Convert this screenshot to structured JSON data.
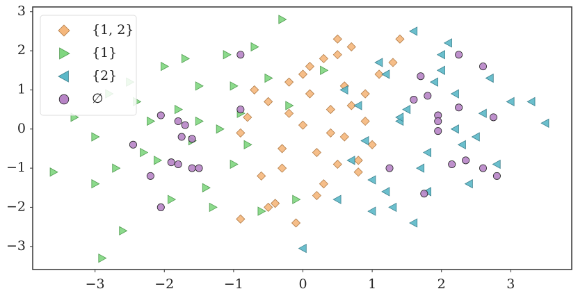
{
  "chart_data": {
    "type": "scatter",
    "xlim": [
      -3.9,
      3.88
    ],
    "ylim": [
      -3.59,
      3.12
    ],
    "xticks": [
      {
        "value": -3,
        "label": "−3"
      },
      {
        "value": -2,
        "label": "−2"
      },
      {
        "value": -1,
        "label": "−1"
      },
      0,
      1,
      2,
      3
    ],
    "yticks": [
      {
        "value": -3,
        "label": "−3"
      },
      {
        "value": -2,
        "label": "−2"
      },
      {
        "value": -1,
        "label": "−1"
      },
      0,
      1,
      2,
      3
    ],
    "grid": false,
    "legend": "upper left",
    "series": [
      {
        "name": "{1, 2}",
        "color": "#f5b77c",
        "edge": "#b07a45",
        "marker": "diamond",
        "x": [
          0.5,
          0.7,
          0.3,
          -0.2,
          0.1,
          0.9,
          1.1,
          -0.5,
          -0.8,
          0.4,
          0.6,
          0.0,
          -0.3,
          0.8,
          1.3,
          -0.6,
          0.2,
          -0.1,
          0.5,
          0.9,
          -0.9,
          -0.4,
          0.3,
          0.7,
          1.0,
          -0.7,
          0.1,
          0.4,
          -0.2,
          0.6,
          -0.9,
          -0.3,
          0.2,
          1.4,
          0.8,
          -0.5,
          0.0,
          0.5
        ],
        "values": [
          2.3,
          2.1,
          1.8,
          1.2,
          1.6,
          0.9,
          1.4,
          0.7,
          0.3,
          0.5,
          -0.2,
          0.1,
          -0.5,
          -0.8,
          1.7,
          -1.2,
          -1.7,
          -2.4,
          -0.9,
          0.2,
          -2.3,
          -1.9,
          -1.4,
          0.6,
          -0.4,
          1.0,
          0.9,
          -0.1,
          0.4,
          1.1,
          -0.1,
          -1.0,
          -0.6,
          2.3,
          -1.1,
          -2.0,
          1.4,
          1.9
        ]
      },
      {
        "name": "{1}",
        "color": "#7fd67f",
        "edge": "#4e9a4e",
        "marker": "triangle-right",
        "x": [
          -3.6,
          -3.3,
          -3.0,
          -2.8,
          -2.6,
          -2.5,
          -2.3,
          -2.2,
          -2.0,
          -1.9,
          -1.8,
          -1.6,
          -1.5,
          -1.4,
          -1.2,
          -1.1,
          -1.0,
          -0.9,
          -0.8,
          -0.7,
          -0.5,
          -0.3,
          -0.1,
          0.3,
          -2.9,
          -2.1,
          -1.7,
          -1.3,
          -0.6,
          -2.4,
          -1.0,
          -0.2,
          -3.0,
          -1.5,
          -2.7
        ],
        "values": [
          -1.1,
          0.3,
          -1.4,
          0.9,
          -2.6,
          1.2,
          -0.6,
          0.2,
          1.6,
          -1.8,
          0.5,
          -0.3,
          1.1,
          -1.5,
          0.0,
          1.9,
          -0.9,
          0.4,
          -0.4,
          2.1,
          1.3,
          2.8,
          -1.8,
          1.5,
          -3.3,
          -0.8,
          1.8,
          -2.0,
          -2.1,
          0.7,
          1.1,
          0.6,
          -0.2,
          0.2,
          -1.0
        ]
      },
      {
        "name": "{2}",
        "color": "#5bb8c8",
        "edge": "#3a7f8c",
        "marker": "triangle-left",
        "x": [
          0.5,
          0.8,
          1.0,
          1.2,
          1.4,
          1.6,
          1.8,
          2.0,
          2.2,
          2.4,
          2.6,
          2.8,
          3.0,
          3.3,
          3.5,
          0.9,
          1.1,
          1.3,
          1.5,
          1.7,
          1.9,
          2.1,
          2.3,
          2.7,
          0.6,
          1.0,
          1.4,
          1.8,
          2.5,
          0.0,
          1.6,
          2.2,
          0.7,
          2.0,
          1.2
        ],
        "values": [
          -1.8,
          0.6,
          -1.3,
          1.4,
          0.2,
          2.5,
          -0.6,
          1.9,
          0.9,
          -1.4,
          0.4,
          -0.9,
          0.7,
          0.7,
          0.15,
          -0.3,
          1.7,
          -2.0,
          0.5,
          -1.0,
          1.2,
          2.2,
          -0.4,
          1.3,
          1.0,
          -2.1,
          0.3,
          -1.6,
          -0.2,
          -3.05,
          -2.4,
          0.0,
          -0.8,
          1.5,
          -1.6
        ]
      },
      {
        "name": "∅",
        "color": "#b784c6",
        "edge": "#222222",
        "marker": "circle",
        "x": [
          -0.9,
          -2.05,
          -1.8,
          -1.7,
          -2.45,
          -1.9,
          -1.8,
          -1.6,
          -1.5,
          -2.2,
          -2.05,
          -1.6,
          -1.75,
          -0.9,
          1.25,
          1.7,
          1.8,
          1.6,
          1.95,
          1.95,
          1.95,
          2.25,
          2.25,
          2.15,
          2.35,
          2.6,
          2.6,
          2.75,
          2.8,
          1.75
        ],
        "values": [
          1.9,
          0.35,
          0.2,
          0.1,
          -0.4,
          -0.85,
          -0.9,
          -1.0,
          -1.0,
          -1.2,
          -2.0,
          -0.25,
          -0.2,
          0.5,
          -1.0,
          1.35,
          0.85,
          0.75,
          0.35,
          0.2,
          -0.05,
          1.9,
          0.55,
          -0.9,
          -0.8,
          1.6,
          -1.0,
          0.3,
          -1.2,
          -1.65
        ]
      }
    ]
  }
}
